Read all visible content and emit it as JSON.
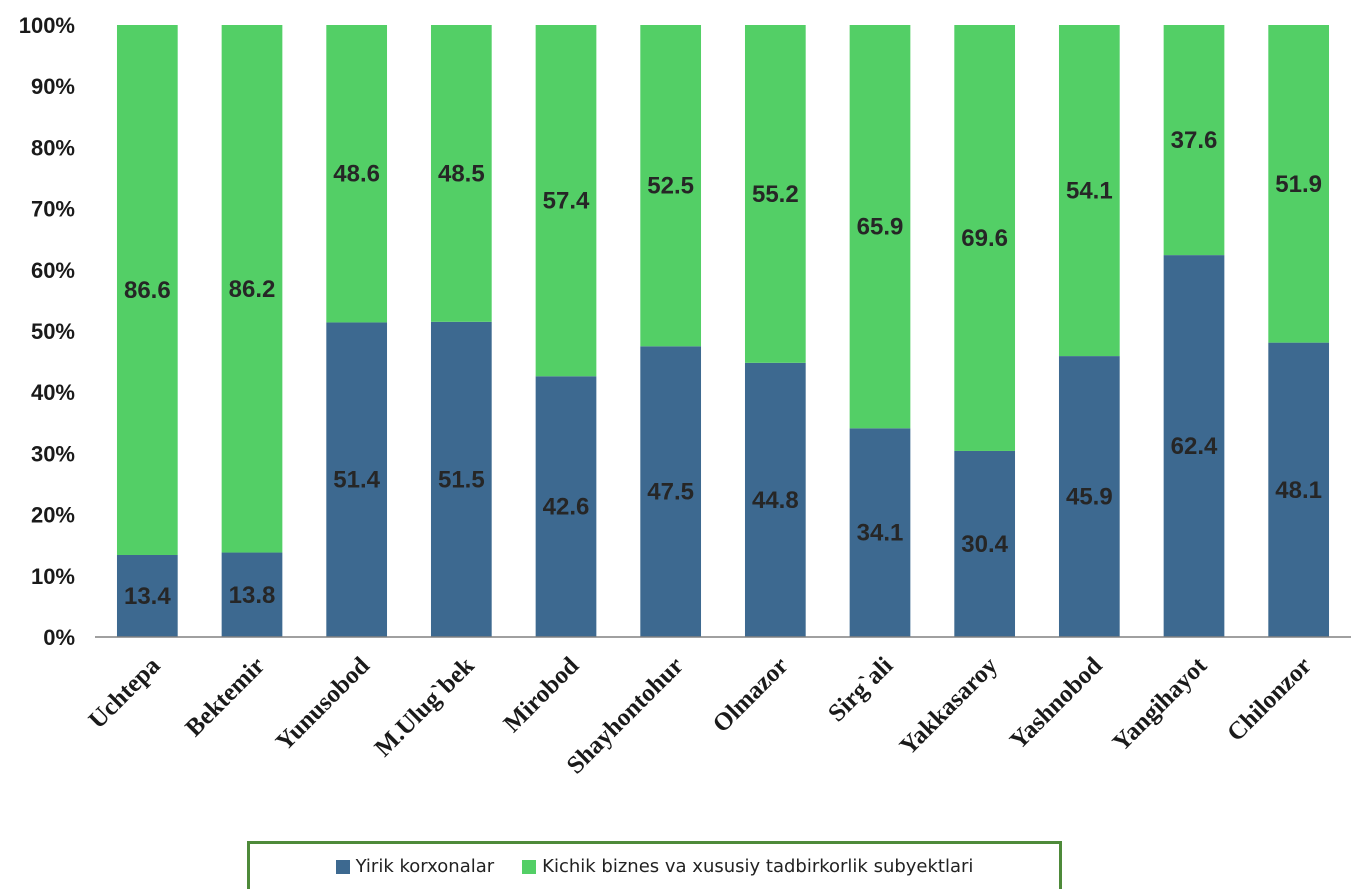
{
  "chart_data": {
    "type": "bar",
    "stacked": true,
    "percent_stacked": true,
    "categories": [
      "Uchtepa",
      "Bektemir",
      "Yunusobod",
      "M.Ulug`bek",
      "Mirobod",
      "Shayhontohur",
      "Olmazor",
      "Sirg`ali",
      "Yakkasaroy",
      "Yashnobod",
      "Yangihayot",
      "Chilonzor"
    ],
    "series": [
      {
        "name": "Yirik korxonalar",
        "color": "#3d6990",
        "values": [
          13.4,
          13.8,
          51.4,
          51.5,
          42.6,
          47.5,
          44.8,
          34.1,
          30.4,
          45.9,
          62.4,
          48.1
        ]
      },
      {
        "name": "Kichik biznes va xususiy tadbirkorlik subyektlari",
        "color": "#53cf66",
        "values": [
          86.6,
          86.2,
          48.6,
          48.5,
          57.4,
          52.5,
          55.2,
          65.9,
          69.6,
          54.1,
          37.6,
          51.9
        ]
      }
    ],
    "ylim": [
      0,
      100
    ],
    "yticks": [
      "0%",
      "10%",
      "20%",
      "30%",
      "40%",
      "50%",
      "60%",
      "70%",
      "80%",
      "90%",
      "100%"
    ],
    "xlabel": "",
    "ylabel": "",
    "grid": false,
    "legend_position": "bottom"
  }
}
